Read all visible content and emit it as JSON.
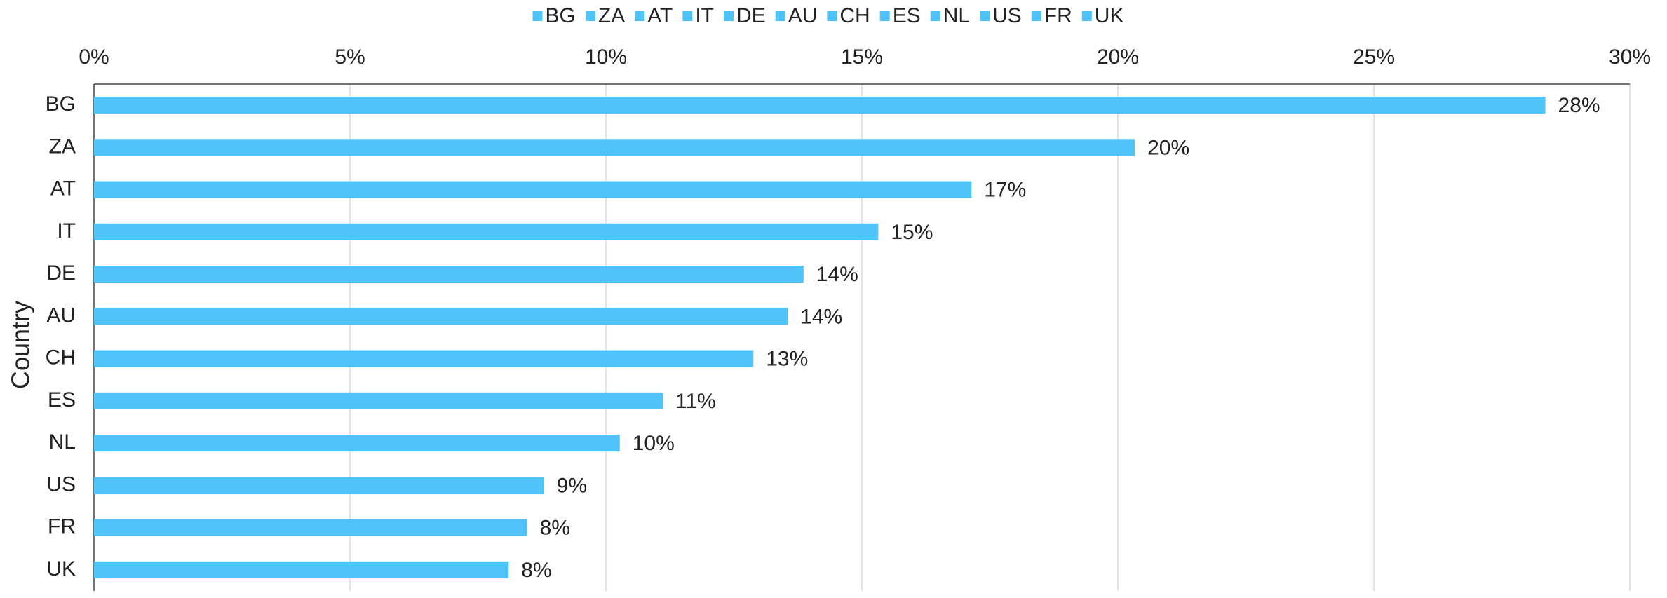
{
  "chart_data": {
    "type": "bar",
    "orientation": "horizontal",
    "y_axis_label": "Country",
    "categories": [
      "BG",
      "ZA",
      "AT",
      "IT",
      "DE",
      "AU",
      "CH",
      "ES",
      "NL",
      "US",
      "FR",
      "UK"
    ],
    "values": [
      28.35,
      20.33,
      17.14,
      15.32,
      13.86,
      13.55,
      12.88,
      11.11,
      10.27,
      8.79,
      8.46,
      8.1
    ],
    "value_labels": [
      "28%",
      "20%",
      "17%",
      "15%",
      "14%",
      "14%",
      "13%",
      "11%",
      "10%",
      "9%",
      "8%",
      "8%"
    ],
    "color": "#4fc3f7",
    "xlim": [
      0,
      30
    ],
    "xticks": [
      {
        "value": 0,
        "label": "0%"
      },
      {
        "value": 5,
        "label": "5%"
      },
      {
        "value": 10,
        "label": "10%"
      },
      {
        "value": 15,
        "label": "15%"
      },
      {
        "value": 20,
        "label": "20%"
      },
      {
        "value": 25,
        "label": "25%"
      },
      {
        "value": 30,
        "label": "30%"
      }
    ],
    "grid": true,
    "legend": "top"
  }
}
